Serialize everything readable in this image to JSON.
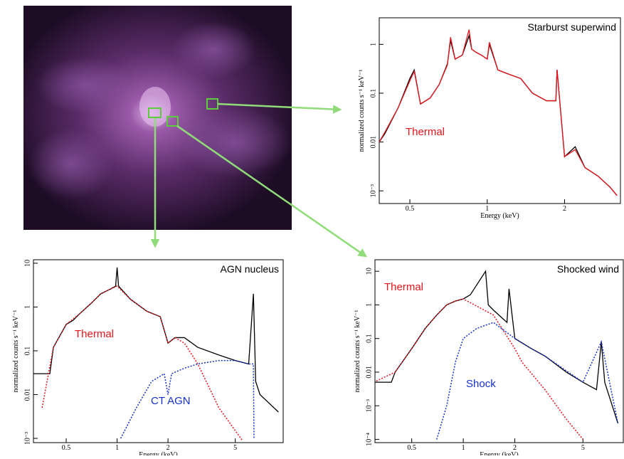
{
  "chart_data": [
    {
      "type": "line",
      "title": "Starburst superwind",
      "xlabel": "Energy (keV)",
      "ylabel": "normalized counts s⁻¹ keV⁻¹",
      "xscale": "log",
      "yscale": "log",
      "xlim": [
        0.38,
        3.3
      ],
      "ylim": [
        0.00055,
        3.5
      ],
      "xticks": [
        0.5,
        1,
        2
      ],
      "yticks": [
        {
          "value": 0.001,
          "label": "10⁻³"
        },
        0.01,
        0.1,
        1
      ],
      "series": [
        {
          "color": "#000000",
          "linestyle": "solid",
          "x": [
            0.38,
            0.4,
            0.45,
            0.5,
            0.52,
            0.55,
            0.6,
            0.65,
            0.7,
            0.72,
            0.75,
            0.8,
            0.85,
            0.87,
            0.9,
            0.95,
            1.0,
            1.02,
            1.1,
            1.2,
            1.35,
            1.5,
            1.7,
            1.85,
            1.87,
            2.0,
            2.2,
            2.4,
            2.7,
            3.0,
            3.2
          ],
          "values": [
            0.01,
            0.015,
            0.05,
            0.2,
            0.3,
            0.06,
            0.08,
            0.15,
            0.4,
            1.2,
            0.5,
            0.6,
            1.5,
            0.8,
            0.7,
            0.6,
            0.5,
            1.0,
            0.3,
            0.25,
            0.2,
            0.1,
            0.07,
            0.07,
            0.3,
            0.005,
            0.008,
            0.003,
            0.002,
            0.0012,
            0.0008
          ]
        },
        {
          "name": "Thermal",
          "color": "#e8141c",
          "linestyle": "solid",
          "x": [
            0.38,
            0.4,
            0.45,
            0.5,
            0.52,
            0.55,
            0.6,
            0.65,
            0.7,
            0.72,
            0.75,
            0.8,
            0.85,
            0.87,
            0.9,
            0.95,
            1.0,
            1.02,
            1.1,
            1.2,
            1.35,
            1.5,
            1.7,
            1.85,
            1.87,
            2.0,
            2.2,
            2.4,
            2.7,
            3.0,
            3.2
          ],
          "values": [
            0.01,
            0.016,
            0.05,
            0.18,
            0.28,
            0.06,
            0.08,
            0.15,
            0.38,
            1.4,
            0.5,
            0.6,
            2.0,
            0.8,
            0.7,
            0.6,
            0.5,
            1.1,
            0.3,
            0.25,
            0.2,
            0.1,
            0.07,
            0.07,
            0.3,
            0.005,
            0.007,
            0.003,
            0.002,
            0.0012,
            0.0008
          ]
        }
      ]
    },
    {
      "type": "line",
      "title": "AGN nucleus",
      "xlabel": "Energy (keV)",
      "ylabel": "normalized counts s⁻¹ keV⁻¹",
      "xscale": "log",
      "yscale": "log",
      "xlim": [
        0.32,
        9.6
      ],
      "ylim": [
        0.0008,
        12
      ],
      "xticks": [
        0.5,
        1,
        2,
        5
      ],
      "yticks": [
        {
          "value": 0.001,
          "label": "10⁻³"
        },
        0.01,
        0.1,
        1,
        10
      ],
      "series": [
        {
          "color": "#000000",
          "linestyle": "solid",
          "x": [
            0.32,
            0.4,
            0.42,
            0.5,
            0.55,
            0.6,
            0.7,
            0.8,
            0.9,
            0.98,
            1.0,
            1.02,
            1.2,
            1.5,
            1.8,
            2.0,
            2.2,
            2.5,
            3,
            4,
            5,
            6,
            6.4,
            6.6,
            7,
            9
          ],
          "values": [
            0.03,
            0.03,
            0.12,
            0.4,
            0.5,
            0.7,
            1.2,
            2,
            2.5,
            3,
            8,
            3,
            1.5,
            0.8,
            0.6,
            0.15,
            0.2,
            0.2,
            0.12,
            0.08,
            0.06,
            0.05,
            2,
            0.02,
            0.01,
            0.004
          ]
        },
        {
          "name": "Thermal",
          "color": "#e8141c",
          "linestyle": "dotted",
          "x": [
            0.36,
            0.42,
            0.5,
            0.6,
            0.7,
            0.8,
            0.9,
            1.0,
            1.2,
            1.5,
            1.8,
            2.0,
            2.2,
            2.5,
            3,
            4,
            5,
            5.5
          ],
          "values": [
            0.005,
            0.12,
            0.4,
            0.7,
            1.2,
            2,
            2.5,
            3,
            1.5,
            0.8,
            0.6,
            0.15,
            0.2,
            0.15,
            0.05,
            0.005,
            0.0015,
            0.0009
          ]
        },
        {
          "name": "CT AGN",
          "color": "#1530d0",
          "linestyle": "dotted",
          "x": [
            1.05,
            1.3,
            1.6,
            1.9,
            2.0,
            2.1,
            2.5,
            3,
            4,
            5,
            6,
            6.4,
            6.45
          ],
          "values": [
            0.001,
            0.005,
            0.02,
            0.03,
            0.01,
            0.03,
            0.04,
            0.05,
            0.06,
            0.06,
            0.05,
            0.05,
            0.001
          ]
        }
      ]
    },
    {
      "type": "line",
      "title": "Shocked wind",
      "xlabel": "Energy (keV)",
      "ylabel": "normalized counts s⁻¹ keV⁻¹",
      "xscale": "log",
      "yscale": "log",
      "xlim": [
        0.305,
        8.6
      ],
      "ylim": [
        8e-05,
        22
      ],
      "xticks": [
        0.5,
        1,
        2,
        5
      ],
      "yticks": [
        {
          "value": 0.0001,
          "label": "10⁻⁴"
        },
        {
          "value": 0.001,
          "label": "10⁻³"
        },
        0.01,
        0.1,
        1,
        10
      ],
      "series": [
        {
          "color": "#000000",
          "linestyle": "solid",
          "x": [
            0.3,
            0.38,
            0.4,
            0.5,
            0.6,
            0.7,
            0.8,
            0.9,
            1.0,
            1.1,
            1.35,
            1.4,
            1.5,
            1.8,
            1.85,
            2.0,
            2.5,
            3,
            4,
            5,
            6,
            6.4,
            6.7,
            8
          ],
          "values": [
            0.005,
            0.005,
            0.01,
            0.05,
            0.2,
            0.5,
            1,
            1.3,
            1.5,
            2,
            10,
            1,
            0.7,
            0.3,
            3,
            0.1,
            0.05,
            0.03,
            0.01,
            0.005,
            0.003,
            0.08,
            0.005,
            0.0003
          ]
        },
        {
          "name": "Thermal",
          "color": "#e8141c",
          "linestyle": "dotted",
          "x": [
            0.3,
            0.4,
            0.5,
            0.6,
            0.7,
            0.8,
            0.9,
            1.0,
            1.5,
            2,
            2.2,
            3,
            4,
            5
          ],
          "values": [
            0.005,
            0.01,
            0.05,
            0.2,
            0.5,
            1,
            1.3,
            1.5,
            0.5,
            0.05,
            0.02,
            0.003,
            0.0004,
            0.0001
          ]
        },
        {
          "name": "Shock",
          "color": "#1530d0",
          "linestyle": "dotted",
          "x": [
            0.7,
            0.8,
            0.9,
            1.0,
            1.2,
            1.5,
            2,
            2.5,
            3,
            5,
            6.4,
            8
          ],
          "values": [
            0.0001,
            0.001,
            0.02,
            0.1,
            0.2,
            0.3,
            0.1,
            0.05,
            0.03,
            0.005,
            0.08,
            0.0003
          ]
        }
      ]
    }
  ]
}
